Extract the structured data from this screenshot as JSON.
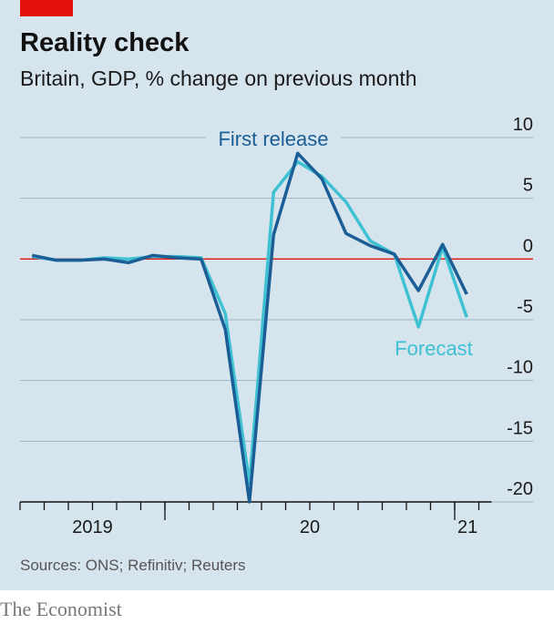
{
  "chart_data": {
    "type": "line",
    "title": "Reality check",
    "subtitle": "Britain, GDP, % change on previous month",
    "source": "Sources: ONS; Refinitiv; Reuters",
    "brand": "The Economist",
    "categories": [
      null,
      null,
      null,
      null,
      null,
      null,
      null,
      null,
      null,
      null,
      null,
      null,
      null,
      null,
      null,
      null,
      null,
      null,
      null
    ],
    "year_groups": [
      {
        "label": "2019",
        "months": 6
      },
      {
        "label": "20",
        "months": 12
      },
      {
        "label": "21",
        "months": 1
      }
    ],
    "series": [
      {
        "name": "Forecast",
        "color": "#3ec1d3",
        "values": [
          0.2,
          -0.1,
          -0.1,
          0.1,
          0.0,
          0.2,
          0.2,
          0.1,
          -4.5,
          -18.5,
          5.5,
          8.0,
          6.8,
          4.7,
          1.5,
          0.4,
          -5.6,
          1.0,
          -4.8
        ]
      },
      {
        "name": "First release",
        "color": "#1b5e96",
        "values": [
          0.3,
          -0.1,
          -0.1,
          0.0,
          -0.3,
          0.3,
          0.1,
          0.0,
          -5.8,
          -20.0,
          2.0,
          8.7,
          6.6,
          2.1,
          1.1,
          0.4,
          -2.6,
          1.2,
          -2.9
        ]
      }
    ],
    "ylim": [
      -20,
      10
    ],
    "yticks": [
      -20,
      -15,
      -10,
      -5,
      0,
      5,
      10
    ],
    "grid": true,
    "zero_line_color": "#e3120b"
  }
}
